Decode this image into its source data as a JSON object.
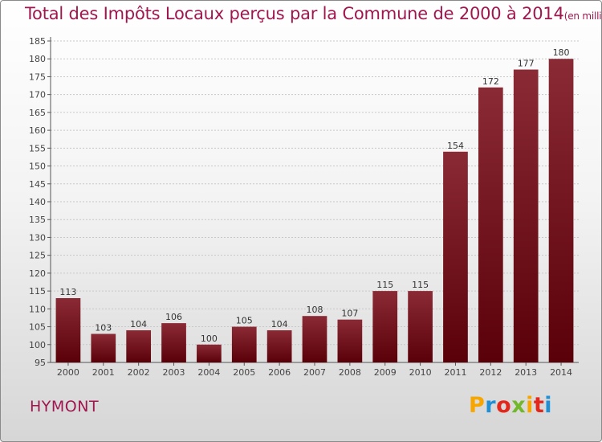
{
  "header": {
    "title": "Total des Impôts Locaux perçus par la Commune de 2000 à 2014",
    "subtitle": "(en milliers d'€)"
  },
  "footer": {
    "place": "HYMONT",
    "logo_letters": [
      "P",
      "r",
      "o",
      "x",
      "i",
      "t",
      "i"
    ],
    "logo_colors": [
      "#f7a600",
      "#1f8fd6",
      "#e2281d",
      "#73b72b",
      "#f7a600",
      "#e2281d",
      "#1f8fd6"
    ]
  },
  "chart_data": {
    "type": "bar",
    "title": "Total des Impôts Locaux perçus par la Commune de 2000 à 2014",
    "subtitle": "(en milliers d'€)",
    "xlabel": "",
    "ylabel": "",
    "categories": [
      "2000",
      "2001",
      "2002",
      "2003",
      "2004",
      "2005",
      "2006",
      "2007",
      "2008",
      "2009",
      "2010",
      "2011",
      "2012",
      "2013",
      "2014"
    ],
    "values": [
      113,
      103,
      104,
      106,
      100,
      105,
      104,
      108,
      107,
      115,
      115,
      154,
      172,
      177,
      180
    ],
    "ylim": [
      95,
      185
    ],
    "yticks": [
      95,
      100,
      105,
      110,
      115,
      120,
      125,
      130,
      135,
      140,
      145,
      150,
      155,
      160,
      165,
      170,
      175,
      180,
      185
    ],
    "grid": true,
    "bar_color_top": "#8a2a35",
    "bar_color_bottom": "#5a0008"
  }
}
